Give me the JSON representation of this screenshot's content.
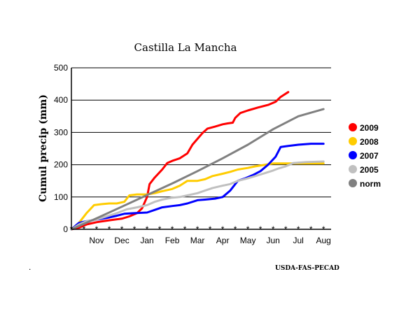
{
  "chart_data": {
    "type": "line",
    "title": "Castilla La Mancha",
    "xlabel": "",
    "ylabel": "Cumul precip (mm)",
    "ylim": [
      0,
      500
    ],
    "yticks": [
      "0",
      "100",
      "200",
      "300",
      "400",
      "500"
    ],
    "xlim": [
      0,
      10.3
    ],
    "month_labels": [
      "Nov",
      "Dec",
      "Jan",
      "Feb",
      "Mar",
      "Apr",
      "May",
      "Jun",
      "Jul",
      "Aug"
    ],
    "grid": "horizontal",
    "legend_position": "right",
    "series": [
      {
        "name": "2009",
        "color": "#ff0000",
        "points": [
          [
            0,
            0
          ],
          [
            0.3,
            5
          ],
          [
            0.6,
            15
          ],
          [
            1,
            22
          ],
          [
            1.5,
            28
          ],
          [
            2,
            33
          ],
          [
            2.3,
            40
          ],
          [
            2.6,
            50
          ],
          [
            2.8,
            65
          ],
          [
            3,
            100
          ],
          [
            3.1,
            140
          ],
          [
            3.3,
            160
          ],
          [
            3.6,
            185
          ],
          [
            3.8,
            205
          ],
          [
            4,
            212
          ],
          [
            4.3,
            220
          ],
          [
            4.6,
            235
          ],
          [
            4.8,
            262
          ],
          [
            5,
            280
          ],
          [
            5.2,
            298
          ],
          [
            5.4,
            312
          ],
          [
            5.7,
            318
          ],
          [
            6,
            325
          ],
          [
            6.2,
            328
          ],
          [
            6.4,
            330
          ],
          [
            6.5,
            345
          ],
          [
            6.7,
            360
          ],
          [
            7,
            368
          ],
          [
            7.4,
            377
          ],
          [
            7.8,
            385
          ],
          [
            8.1,
            395
          ],
          [
            8.3,
            410
          ],
          [
            8.6,
            425
          ]
        ]
      },
      {
        "name": "2008",
        "color": "#ffcc00",
        "points": [
          [
            0,
            0
          ],
          [
            0.3,
            20
          ],
          [
            0.6,
            50
          ],
          [
            0.9,
            75
          ],
          [
            1.2,
            78
          ],
          [
            1.5,
            80
          ],
          [
            1.8,
            80
          ],
          [
            2.1,
            85
          ],
          [
            2.3,
            105
          ],
          [
            2.6,
            108
          ],
          [
            3,
            108
          ],
          [
            3.3,
            112
          ],
          [
            3.6,
            118
          ],
          [
            4,
            125
          ],
          [
            4.3,
            135
          ],
          [
            4.6,
            150
          ],
          [
            5,
            150
          ],
          [
            5.3,
            155
          ],
          [
            5.6,
            165
          ],
          [
            6,
            172
          ],
          [
            6.3,
            178
          ],
          [
            6.6,
            185
          ],
          [
            7,
            190
          ],
          [
            7.3,
            195
          ],
          [
            7.7,
            200
          ],
          [
            8,
            204
          ],
          [
            8.5,
            204
          ],
          [
            10,
            204
          ]
        ]
      },
      {
        "name": "2007",
        "color": "#0000ff",
        "points": [
          [
            0,
            0
          ],
          [
            0.3,
            20
          ],
          [
            0.6,
            25
          ],
          [
            1,
            30
          ],
          [
            1.4,
            35
          ],
          [
            1.8,
            42
          ],
          [
            2.1,
            48
          ],
          [
            2.5,
            50
          ],
          [
            3,
            52
          ],
          [
            3.3,
            60
          ],
          [
            3.6,
            68
          ],
          [
            4,
            72
          ],
          [
            4.3,
            75
          ],
          [
            4.6,
            80
          ],
          [
            5,
            90
          ],
          [
            5.3,
            92
          ],
          [
            5.7,
            95
          ],
          [
            6,
            100
          ],
          [
            6.3,
            120
          ],
          [
            6.6,
            150
          ],
          [
            6.9,
            158
          ],
          [
            7.2,
            168
          ],
          [
            7.5,
            180
          ],
          [
            7.8,
            200
          ],
          [
            8.1,
            225
          ],
          [
            8.3,
            255
          ],
          [
            8.6,
            258
          ],
          [
            9,
            262
          ],
          [
            9.5,
            265
          ],
          [
            10,
            265
          ]
        ]
      },
      {
        "name": "2005",
        "color": "#c0c0c0",
        "points": [
          [
            0,
            0
          ],
          [
            0.3,
            15
          ],
          [
            0.6,
            25
          ],
          [
            1,
            30
          ],
          [
            1.4,
            40
          ],
          [
            1.8,
            50
          ],
          [
            2.2,
            62
          ],
          [
            2.6,
            68
          ],
          [
            3,
            75
          ],
          [
            3.3,
            85
          ],
          [
            3.6,
            92
          ],
          [
            4,
            98
          ],
          [
            4.3,
            100
          ],
          [
            4.6,
            105
          ],
          [
            5,
            112
          ],
          [
            5.3,
            120
          ],
          [
            5.6,
            128
          ],
          [
            6,
            135
          ],
          [
            6.3,
            140
          ],
          [
            6.6,
            150
          ],
          [
            7,
            158
          ],
          [
            7.3,
            165
          ],
          [
            7.6,
            172
          ],
          [
            8,
            182
          ],
          [
            8.2,
            188
          ],
          [
            8.5,
            195
          ],
          [
            8.8,
            205
          ],
          [
            9.3,
            208
          ],
          [
            10,
            210
          ]
        ]
      },
      {
        "name": "norm",
        "color": "#808080",
        "points": [
          [
            0,
            0
          ],
          [
            1,
            34
          ],
          [
            2,
            70
          ],
          [
            3,
            106
          ],
          [
            4,
            142
          ],
          [
            5,
            180
          ],
          [
            6,
            220
          ],
          [
            7,
            262
          ],
          [
            8,
            310
          ],
          [
            9,
            350
          ],
          [
            10,
            372
          ]
        ]
      }
    ]
  },
  "footer": {
    "credit": "USDA-FAS-PECAD",
    "mark": "."
  }
}
